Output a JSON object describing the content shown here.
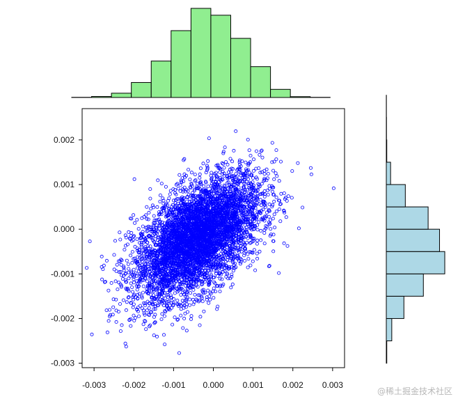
{
  "chart_data": {
    "type": "scatter",
    "subtype": "joint scatter with marginal histograms",
    "title": "",
    "xlabel": "",
    "ylabel": "",
    "xlim": [
      -0.0033,
      0.0033
    ],
    "ylim": [
      -0.0031,
      0.0027
    ],
    "x_ticks": [
      -0.003,
      -0.002,
      -0.001,
      0.0,
      0.001,
      0.002,
      0.003
    ],
    "x_tick_labels": [
      "-0.003",
      "-0.002",
      "-0.001",
      "0.000",
      "0.001",
      "0.002",
      "0.003"
    ],
    "y_ticks": [
      -0.003,
      -0.002,
      -0.001,
      0.0,
      0.001,
      0.002
    ],
    "y_tick_labels": [
      "-0.003",
      "-0.002",
      "-0.001",
      "0.000",
      "0.001",
      "0.002"
    ],
    "grid": false,
    "legend": "none",
    "scatter": {
      "marker": "open circle",
      "color": "#0000ff",
      "n_points_approx": 5000,
      "x_mean": -0.0004,
      "y_mean": -0.0002,
      "x_sd": 0.0008,
      "y_sd": 0.0007,
      "correlation": 0.55
    },
    "x_histogram": {
      "color": "#90ee90",
      "bin_edges": [
        -0.0033,
        -0.0028,
        -0.0023,
        -0.0018,
        -0.0013,
        -0.0008,
        -0.0003,
        0.0002,
        0.0007,
        0.0012,
        0.0017,
        0.0022,
        0.0027,
        0.0032
      ],
      "counts": [
        2,
        12,
        50,
        175,
        425,
        780,
        1040,
        960,
        690,
        360,
        95,
        10,
        2
      ]
    },
    "y_histogram": {
      "color": "#add8e6",
      "bin_edges": [
        -0.003,
        -0.0025,
        -0.002,
        -0.0015,
        -0.001,
        -0.0005,
        0.0,
        0.0005,
        0.001,
        0.0015,
        0.002,
        0.0025,
        0.003
      ],
      "counts": [
        10,
        115,
        370,
        780,
        1230,
        1120,
        880,
        400,
        90,
        10,
        4,
        2
      ]
    }
  },
  "watermark": "@稀土掘金技术社区"
}
